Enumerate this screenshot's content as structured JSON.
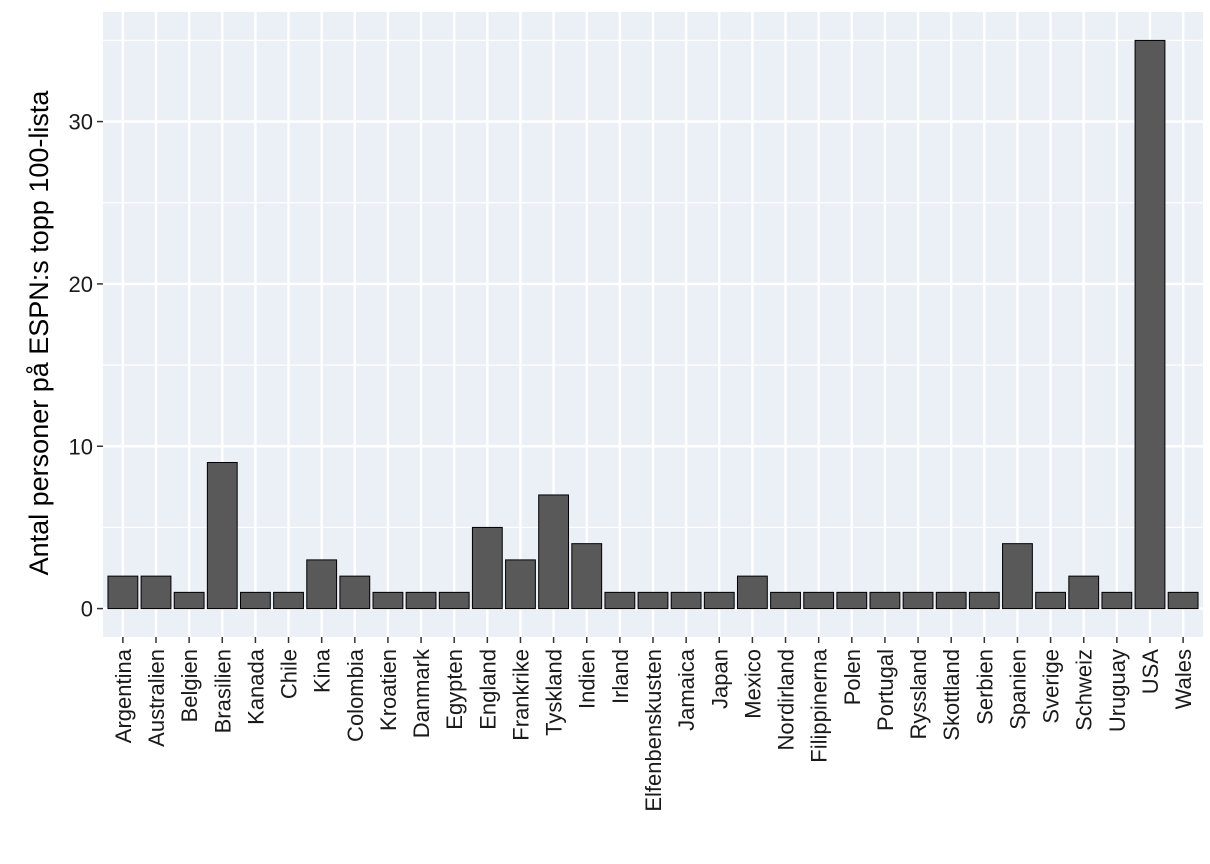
{
  "chart_data": {
    "type": "bar",
    "title": "",
    "xlabel": "",
    "ylabel": "Antal personer på ESPN:s topp 100-lista",
    "categories": [
      "Argentina",
      "Australien",
      "Belgien",
      "Brasilien",
      "Kanada",
      "Chile",
      "Kina",
      "Colombia",
      "Kroatien",
      "Danmark",
      "Egypten",
      "England",
      "Frankrike",
      "Tyskland",
      "Indien",
      "Irland",
      "Elfenbenskusten",
      "Jamaica",
      "Japan",
      "Mexico",
      "Nordirland",
      "Filippinerna",
      "Polen",
      "Portugal",
      "Ryssland",
      "Skottland",
      "Serbien",
      "Spanien",
      "Sverige",
      "Schweiz",
      "Uruguay",
      "USA",
      "Wales"
    ],
    "values": [
      2,
      2,
      1,
      9,
      1,
      1,
      3,
      2,
      1,
      1,
      1,
      5,
      3,
      7,
      4,
      1,
      1,
      1,
      1,
      2,
      1,
      1,
      1,
      1,
      1,
      1,
      1,
      4,
      1,
      2,
      1,
      35,
      1
    ],
    "ylim": [
      -1.75,
      36.75
    ],
    "yticks": [
      0,
      10,
      20,
      30
    ],
    "ytick_labels": [
      "0",
      "10",
      "20",
      "30"
    ],
    "grid": true,
    "colors": {
      "panel": "#EBF0F6",
      "grid": "#FFFFFF",
      "bar_fill": "#595959",
      "bar_stroke": "#000000"
    }
  }
}
